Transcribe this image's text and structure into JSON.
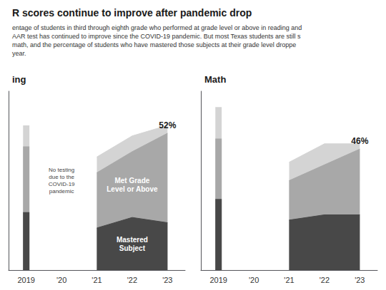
{
  "title": "R scores continue to improve after pandemic drop",
  "subtitle": "entage of students in third through eighth grade who performed at grade level or above in reading and\nAAR test has continued to improve since the COVID-19 pandemic. But most Texas students are still s\nmath, and the percentage of students who have mastered those subjects at their grade level droppe\nyear.",
  "chart_data": [
    {
      "type": "area",
      "title": "ing",
      "categories": [
        "2019",
        "'20",
        "'21",
        "'22",
        "'23"
      ],
      "series": [
        {
          "color": "#d4d4d4",
          "values": [
            55,
            null,
            43,
            51,
            55
          ]
        },
        {
          "name": "Met Grade\nLevel or Above",
          "color": "#a8a8a8",
          "values": [
            47,
            null,
            37,
            45,
            52
          ],
          "value_labels": [
            null,
            null,
            null,
            null,
            "52%"
          ]
        },
        {
          "name": "Mastered\nSubject",
          "color": "#484848",
          "values": [
            22,
            null,
            16,
            20,
            18
          ]
        }
      ],
      "annotations": [
        {
          "text": "No testing\ndue to the\nCOVID-19\npandemic",
          "x": "'20"
        }
      ],
      "ylim": [
        0,
        68
      ],
      "tick_labels": "x",
      "grid": false
    },
    {
      "type": "area",
      "title": "Math",
      "categories": [
        "2019",
        "'20",
        "'21",
        "'22",
        "'23"
      ],
      "series": [
        {
          "color": "#d4d4d4",
          "values": [
            62,
            null,
            41,
            48,
            48
          ]
        },
        {
          "color": "#a8a8a8",
          "values": [
            50,
            null,
            34,
            40,
            46
          ],
          "value_labels": [
            null,
            null,
            null,
            null,
            "46%"
          ]
        },
        {
          "color": "#484848",
          "values": [
            27,
            null,
            19,
            21,
            21
          ]
        }
      ],
      "ylim": [
        0,
        68
      ],
      "tick_labels": "x",
      "grid": false
    }
  ]
}
